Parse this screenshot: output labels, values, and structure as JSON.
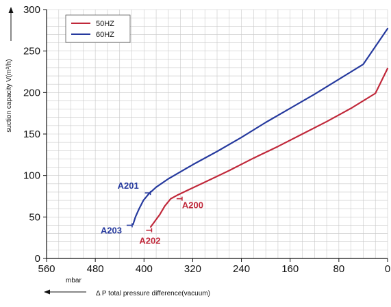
{
  "chart_data": {
    "type": "line",
    "title": "",
    "xlabel": "Δ P total pressure difference(vacuum)",
    "xunit": "mbar",
    "ylabel": "suction capacity V(m³/h)",
    "xlim": [
      560,
      0
    ],
    "ylim": [
      0,
      300
    ],
    "xticks": [
      560,
      480,
      400,
      320,
      240,
      160,
      80,
      0
    ],
    "yticks": [
      0,
      50,
      100,
      150,
      200,
      250,
      300
    ],
    "grid": true,
    "legend_position": "top-left",
    "series": [
      {
        "name": "50HZ",
        "color": "#c0283a",
        "x": [
          389,
          382,
          374,
          366,
          356,
          346,
          332,
          300,
          260,
          220,
          180,
          140,
          100,
          60,
          20,
          0
        ],
        "y": [
          38,
          45,
          53,
          63,
          72,
          76,
          81,
          92,
          106,
          121,
          135,
          150,
          165,
          181,
          199,
          229
        ]
      },
      {
        "name": "60HZ",
        "color": "#263a9e",
        "x": [
          418,
          414,
          408,
          401,
          392,
          380,
          360,
          320,
          280,
          240,
          200,
          160,
          120,
          80,
          40,
          0
        ],
        "y": [
          41,
          50,
          60,
          70,
          78,
          86,
          96,
          113,
          129,
          146,
          164,
          181,
          198,
          216,
          234,
          277
        ]
      }
    ],
    "annotations": [
      {
        "text": "A201",
        "x": 394,
        "y": 79,
        "color": "#263a9e"
      },
      {
        "text": "A203",
        "x": 424,
        "y": 40,
        "color": "#263a9e"
      },
      {
        "text": "A200",
        "x": 342,
        "y": 72,
        "color": "#c0283a"
      },
      {
        "text": "A202",
        "x": 392,
        "y": 34,
        "color": "#c0283a"
      }
    ]
  }
}
